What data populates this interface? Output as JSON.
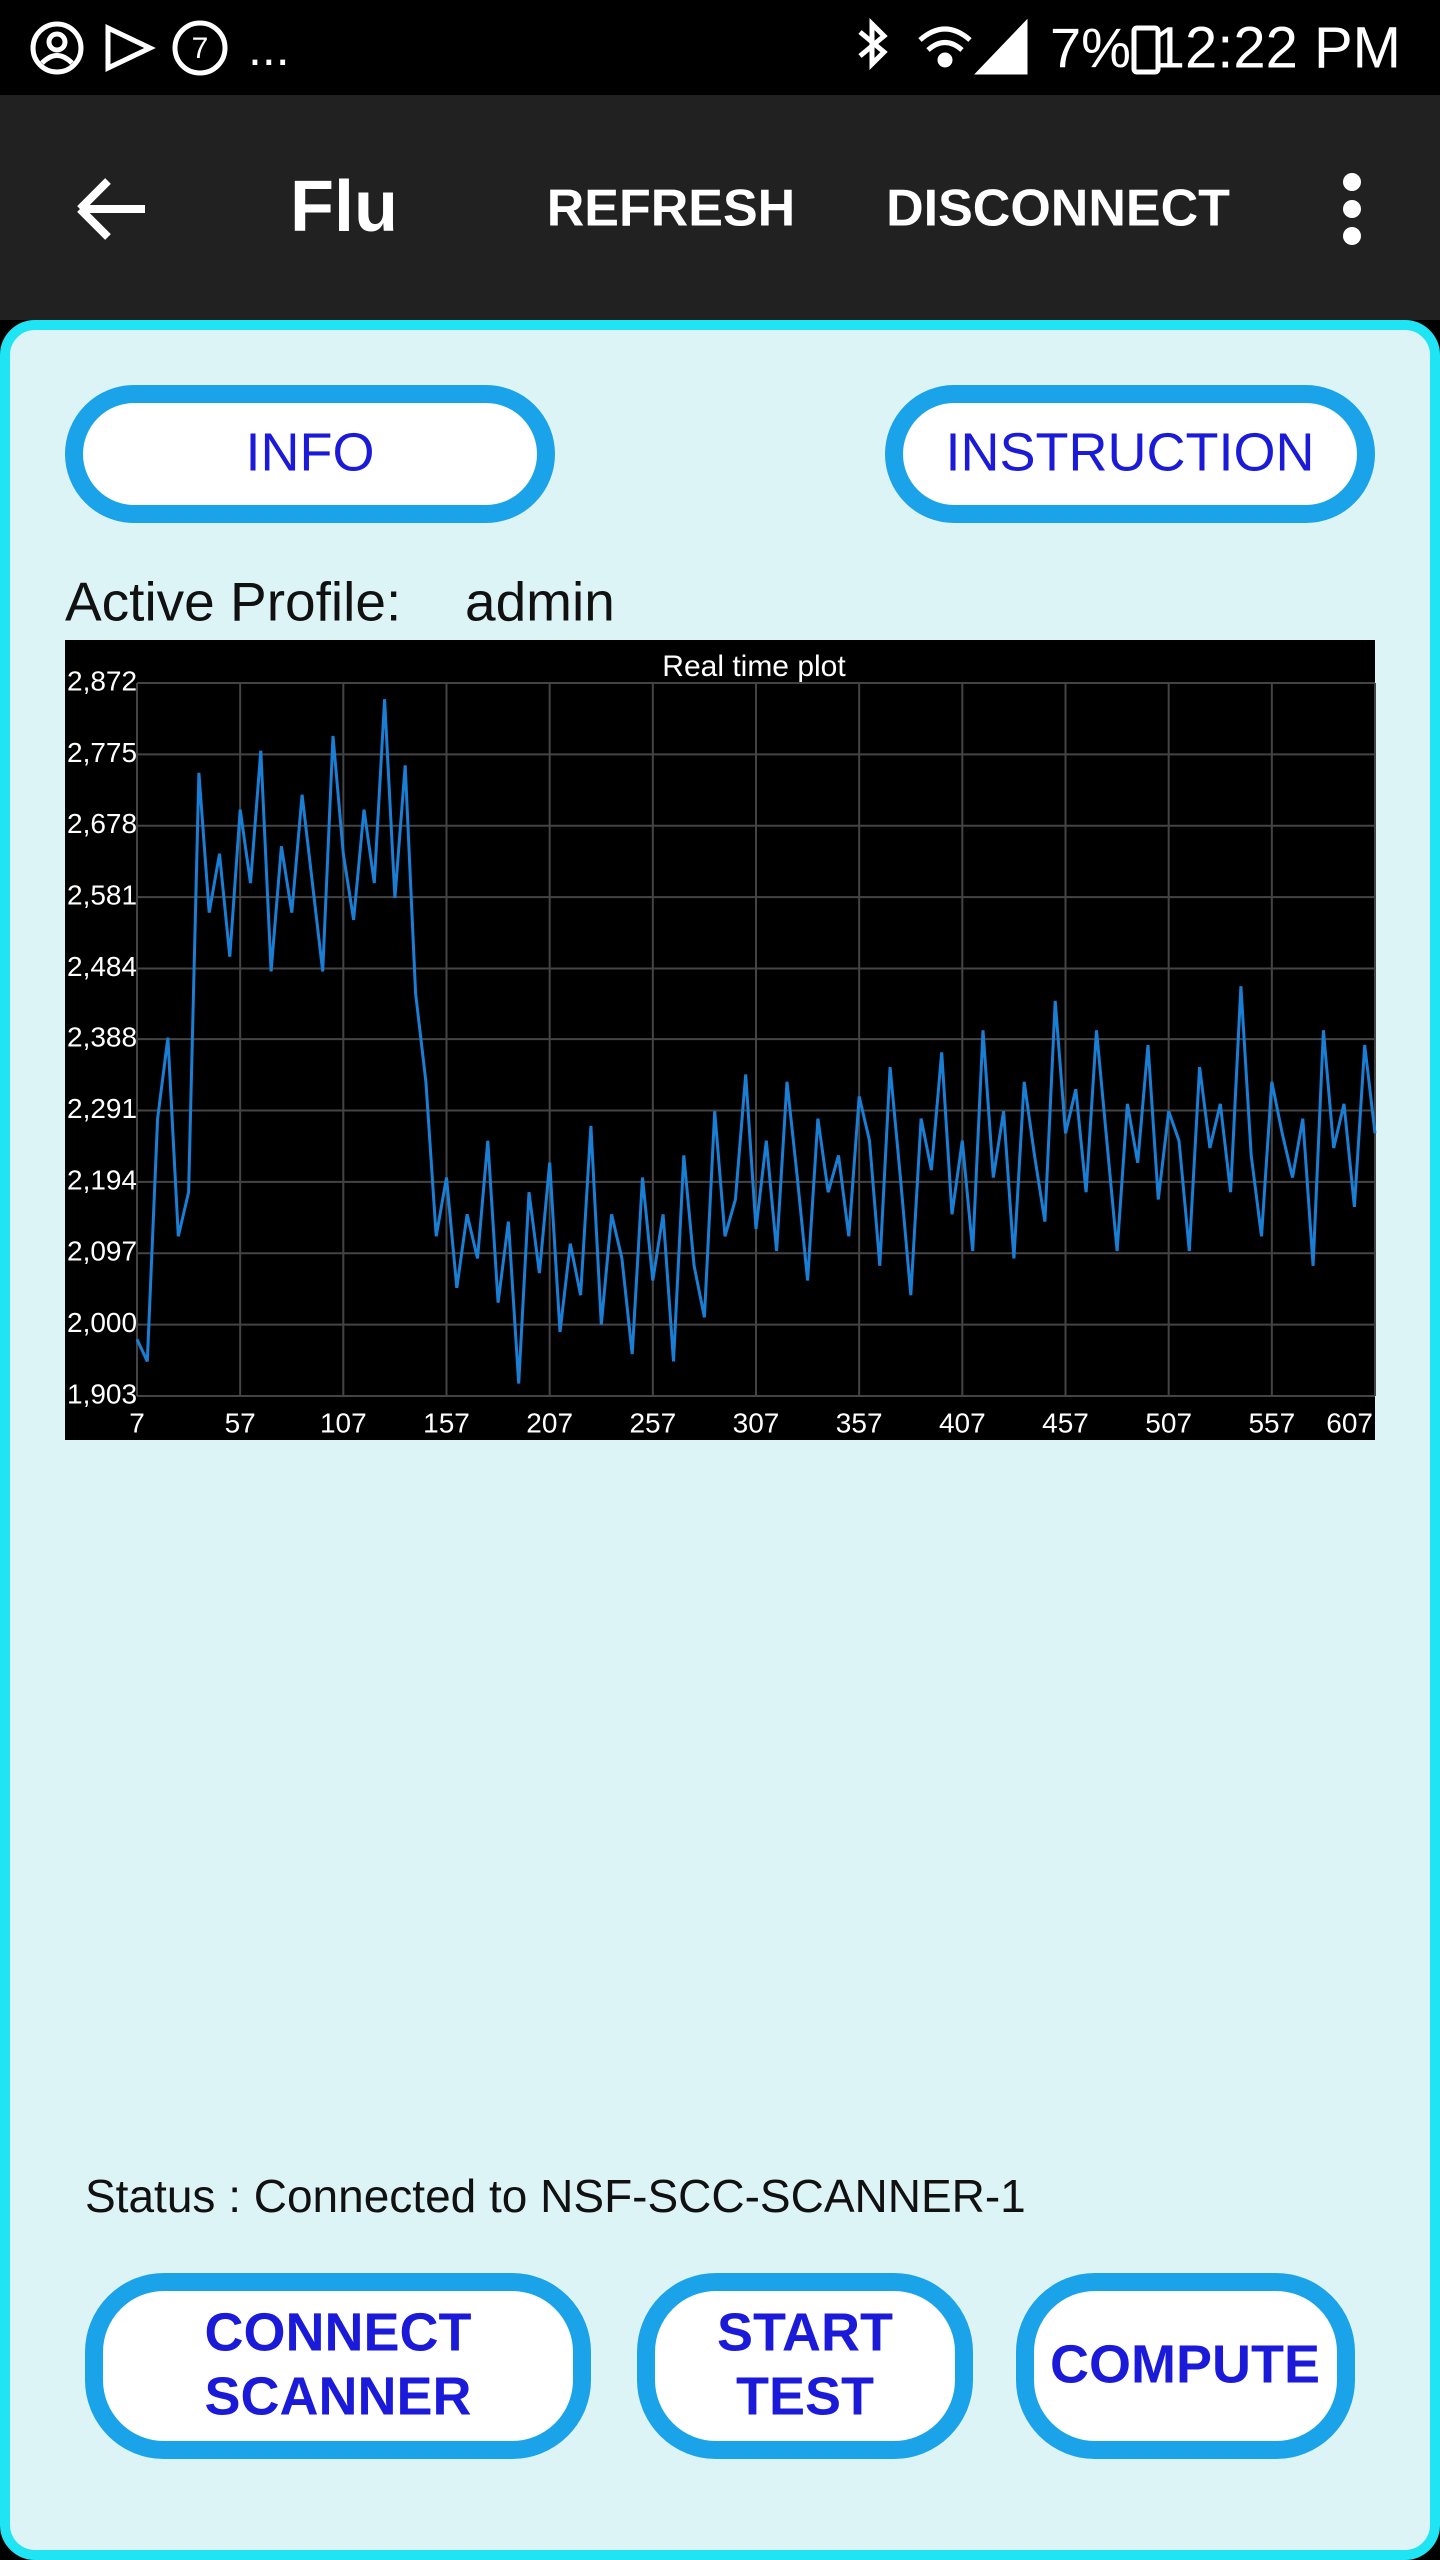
{
  "status_bar": {
    "badge": "7",
    "more": "...",
    "battery": "7%",
    "time": "12:22 PM"
  },
  "app_bar": {
    "title": "Flu",
    "actions": [
      "REFRESH",
      "DISCONNECT"
    ]
  },
  "top_buttons": [
    "INFO",
    "INSTRUCTION"
  ],
  "profile": {
    "label": "Active Profile:",
    "value": "admin"
  },
  "chart_data": {
    "type": "line",
    "title": "Real time plot",
    "color": "#1a7fd4",
    "grid": true,
    "x": [
      7,
      12,
      17,
      22,
      27,
      32,
      37,
      42,
      47,
      52,
      57,
      62,
      67,
      72,
      77,
      82,
      87,
      92,
      97,
      102,
      107,
      112,
      117,
      122,
      127,
      132,
      137,
      142,
      147,
      152,
      157,
      162,
      167,
      172,
      177,
      182,
      187,
      192,
      197,
      202,
      207,
      212,
      217,
      222,
      227,
      232,
      237,
      242,
      247,
      252,
      257,
      262,
      267,
      272,
      277,
      282,
      287,
      292,
      297,
      302,
      307,
      312,
      317,
      322,
      327,
      332,
      337,
      342,
      347,
      352,
      357,
      362,
      367,
      372,
      377,
      382,
      387,
      392,
      397,
      402,
      407,
      412,
      417,
      422,
      427,
      432,
      437,
      442,
      447,
      452,
      457,
      462,
      467,
      472,
      477,
      482,
      487,
      492,
      497,
      502,
      507,
      512,
      517,
      522,
      527,
      532,
      537,
      542,
      547,
      552,
      557,
      562,
      567,
      572,
      577,
      582,
      587,
      592,
      597,
      602,
      607
    ],
    "values": [
      1980,
      1950,
      2280,
      2390,
      2120,
      2180,
      2750,
      2560,
      2640,
      2500,
      2700,
      2600,
      2780,
      2480,
      2650,
      2560,
      2720,
      2600,
      2480,
      2800,
      2640,
      2550,
      2700,
      2600,
      2850,
      2580,
      2760,
      2450,
      2330,
      2120,
      2200,
      2050,
      2150,
      2090,
      2250,
      2030,
      2140,
      1920,
      2180,
      2070,
      2220,
      1990,
      2110,
      2040,
      2270,
      2000,
      2150,
      2090,
      1960,
      2200,
      2060,
      2150,
      1950,
      2230,
      2080,
      2010,
      2290,
      2120,
      2170,
      2340,
      2130,
      2250,
      2100,
      2330,
      2200,
      2060,
      2280,
      2180,
      2230,
      2120,
      2310,
      2250,
      2080,
      2350,
      2200,
      2040,
      2280,
      2210,
      2370,
      2150,
      2250,
      2100,
      2400,
      2200,
      2290,
      2090,
      2330,
      2230,
      2140,
      2440,
      2260,
      2320,
      2180,
      2400,
      2250,
      2100,
      2300,
      2220,
      2380,
      2170,
      2290,
      2250,
      2100,
      2350,
      2240,
      2300,
      2180,
      2460,
      2230,
      2120,
      2330,
      2260,
      2200,
      2280,
      2080,
      2400,
      2240,
      2300,
      2160,
      2380,
      2260
    ],
    "xlim": [
      7,
      607
    ],
    "ylim": [
      1903,
      2872
    ],
    "xticks": [
      7,
      57,
      107,
      157,
      207,
      257,
      307,
      357,
      407,
      457,
      507,
      557,
      607
    ],
    "yticks": [
      {
        "value": 1903,
        "label": "1,903"
      },
      {
        "value": 2000,
        "label": "2,000"
      },
      {
        "value": 2097,
        "label": "2,097"
      },
      {
        "value": 2194,
        "label": "2,194"
      },
      {
        "value": 2291,
        "label": "2,291"
      },
      {
        "value": 2388,
        "label": "2,388"
      },
      {
        "value": 2484,
        "label": "2,484"
      },
      {
        "value": 2581,
        "label": "2,581"
      },
      {
        "value": 2678,
        "label": "2,678"
      },
      {
        "value": 2775,
        "label": "2,775"
      },
      {
        "value": 2872,
        "label": "2,872"
      }
    ]
  },
  "status": "Status : Connected to NSF-SCC-SCANNER-1",
  "bottom_buttons": [
    [
      "CONNECT",
      "SCANNER"
    ],
    [
      "START",
      "TEST"
    ],
    [
      "COMPUTE"
    ]
  ]
}
